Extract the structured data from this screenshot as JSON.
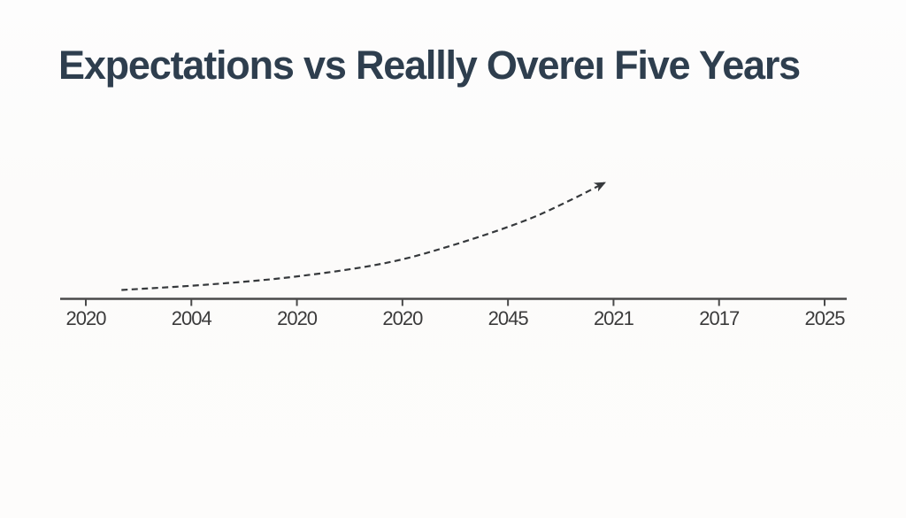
{
  "header": {
    "title": "Expectations vs Reallly Overeı Five Years",
    "title_color": "#2e3e4e"
  },
  "colors": {
    "background": "#fcfbfa",
    "axis": "#4a4a4a",
    "tick_label": "#3b3b3b",
    "curve": "#36393c"
  },
  "chart_data": {
    "type": "line",
    "title": "Expectations vs Reallly Overeı Five Years",
    "xlabel": "",
    "ylabel": "",
    "x_tick_labels": [
      "2020",
      "2004",
      "2020",
      "2020",
      "2045",
      "2021",
      "2017",
      "2025"
    ],
    "y_axis_shown": false,
    "grid": false,
    "legend": "none",
    "annotations": [
      "dashed exponential curve rising left-to-right, ending in an arrowhead above the 2021 tick"
    ],
    "series": [
      {
        "name": "dashed-trend-arrow",
        "line_style": "dashed",
        "marker": "arrowhead-at-end",
        "x_frac_along_axis": [
          0.078,
          0.186,
          0.298,
          0.411,
          0.497,
          0.587,
          0.643,
          0.692
        ],
        "height_frac_relative": [
          0.076,
          0.122,
          0.191,
          0.305,
          0.458,
          0.664,
          0.832,
          1.0
        ]
      }
    ]
  }
}
